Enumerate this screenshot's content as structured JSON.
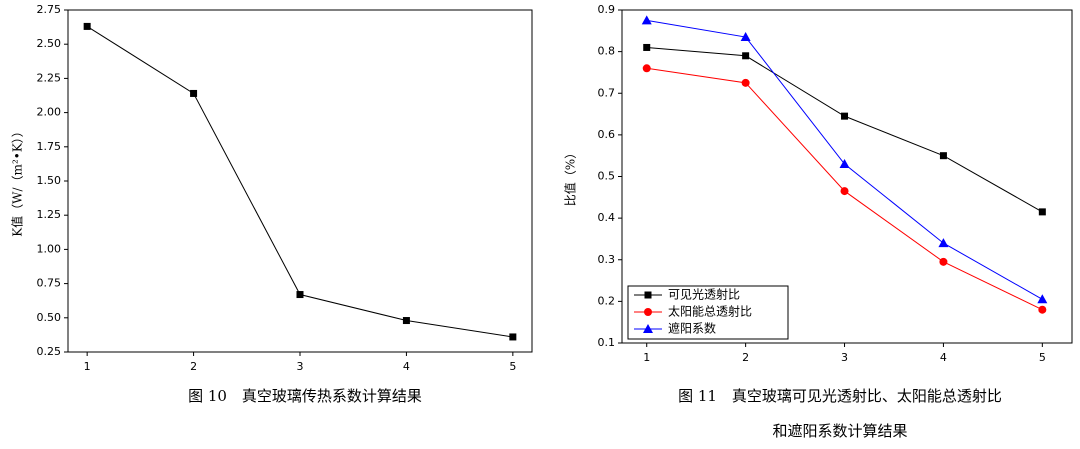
{
  "chart_data": [
    {
      "type": "line",
      "ylabel": "K值（W/（m²•K））",
      "x": [
        1,
        2,
        3,
        4,
        5
      ],
      "xlim": [
        0.82,
        5.18
      ],
      "xticks": [
        1,
        2,
        3,
        4,
        5
      ],
      "ylim": [
        0.25,
        2.75
      ],
      "yticks": [
        0.25,
        {
          "value": 0.5,
          "label": "0.50"
        },
        0.75,
        {
          "value": 1,
          "label": "1.00"
        },
        1.25,
        {
          "value": 1.5,
          "label": "1.50"
        },
        1.75,
        {
          "value": 2,
          "label": "2.00"
        },
        2.25,
        {
          "value": 2.5,
          "label": "2.50"
        },
        2.75
      ],
      "series": [
        {
          "color": "#000000",
          "marker": "square",
          "values": [
            2.63,
            2.14,
            0.67,
            0.48,
            0.36
          ]
        }
      ],
      "caption": [
        "图 10　真空玻璃传热系数计算结果"
      ]
    },
    {
      "type": "line",
      "ylabel": "比值（%）",
      "x": [
        1,
        2,
        3,
        4,
        5
      ],
      "xlim": [
        0.75,
        5.3
      ],
      "xticks": [
        1,
        2,
        3,
        4,
        5
      ],
      "ylim": [
        0.1,
        0.9
      ],
      "yticks": [
        0.1,
        0.2,
        0.3,
        0.4,
        0.5,
        0.6,
        0.7,
        0.8,
        0.9
      ],
      "legend": "lower left",
      "series": [
        {
          "name": "可见光透射比",
          "color": "#000000",
          "marker": "square",
          "values": [
            0.81,
            0.79,
            0.645,
            0.55,
            0.415
          ]
        },
        {
          "name": "太阳能总透射比",
          "color": "#ff0000",
          "marker": "circle",
          "values": [
            0.76,
            0.725,
            0.465,
            0.295,
            0.18
          ]
        },
        {
          "name": "遮阳系数",
          "color": "#0000ff",
          "marker": "triangle",
          "values": [
            0.875,
            0.835,
            0.53,
            0.34,
            0.205
          ]
        }
      ],
      "caption": [
        "图 11　真空玻璃可见光透射比、太阳能总透射比",
        "和遮阳系数计算结果"
      ]
    }
  ]
}
